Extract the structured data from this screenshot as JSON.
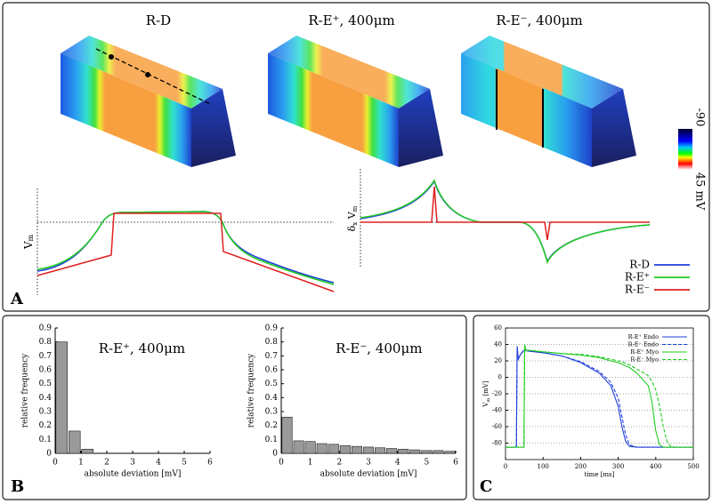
{
  "panel_labels": [
    "A",
    "B",
    "C"
  ],
  "panel_a": {
    "titles": [
      "R-D",
      "R-E⁺, 400μm",
      "R-E⁻, 400μm"
    ],
    "colorbar_labels": [
      "-90",
      "45 mV"
    ],
    "vm_label": [
      "V",
      "m"
    ],
    "dvm_label": [
      "δ",
      "x",
      " V",
      "m"
    ],
    "legend": [
      {
        "name": "R-D",
        "color": "#1f3fd8"
      },
      {
        "name": "R-E⁺",
        "color": "#22cc22"
      },
      {
        "name": "R-E⁻",
        "color": "#e02020"
      }
    ]
  },
  "chart_data": [
    {
      "type": "histogram",
      "title": "R-E⁺, 400μm",
      "x_label": "absolute deviation [mV]",
      "y_label": "relative frequency",
      "bins": [
        0,
        0.5,
        1,
        1.5,
        2,
        2.5,
        3,
        3.5,
        4,
        4.5,
        5,
        5.5,
        6
      ],
      "values": [
        0.8,
        0.16,
        0.03,
        0,
        0,
        0,
        0,
        0,
        0,
        0,
        0,
        0
      ],
      "color": "#999999",
      "xlim": [
        0,
        6
      ],
      "xticks": [
        0,
        1,
        2,
        3,
        4,
        5,
        6
      ],
      "ylim": [
        0,
        0.9
      ],
      "yticks": [
        0,
        0.1,
        0.2,
        0.3,
        0.4,
        0.5,
        0.6,
        0.7,
        0.8,
        0.9
      ]
    },
    {
      "type": "histogram",
      "title": "R-E⁻, 400μm",
      "x_label": "absolute deviation [mV]",
      "y_label": "relative frequency",
      "bins": [
        0,
        0.4,
        0.8,
        1.2,
        1.6,
        2,
        2.4,
        2.8,
        3.2,
        3.6,
        4,
        4.4,
        4.8,
        5.2,
        5.6,
        6
      ],
      "values": [
        0.26,
        0.09,
        0.085,
        0.07,
        0.065,
        0.055,
        0.05,
        0.045,
        0.04,
        0.035,
        0.03,
        0.025,
        0.02,
        0.02,
        0.015
      ],
      "color": "#999999",
      "xlim": [
        0,
        6
      ],
      "xticks": [
        0,
        1,
        2,
        3,
        4,
        5,
        6
      ],
      "ylim": [
        0,
        0.9
      ],
      "yticks": [
        0,
        0.1,
        0.2,
        0.3,
        0.4,
        0.5,
        0.6,
        0.7,
        0.8,
        0.9
      ]
    },
    {
      "type": "line",
      "x_label": "time [ms]",
      "y_label": [
        "V",
        "m",
        " [mV]"
      ],
      "x": [
        0,
        29,
        31,
        34,
        40,
        49,
        51,
        55,
        60,
        100,
        150,
        200,
        250,
        280,
        300,
        310,
        320,
        330,
        350,
        380,
        390,
        400,
        410,
        420,
        430,
        440,
        450,
        500
      ],
      "series": [
        {
          "name": "R-E⁺ Endo",
          "color": "#1f3fd8",
          "dashed": false,
          "values": [
            -85,
            -85,
            38,
            22,
            28,
            33,
            33,
            33,
            32,
            30,
            26,
            18,
            5,
            -10,
            -35,
            -60,
            -78,
            -84,
            -85,
            -85,
            -85,
            -85,
            -85,
            -85,
            -85,
            -85,
            -85,
            -85
          ]
        },
        {
          "name": "R-E⁻ Endo",
          "color": "#1f3fd8",
          "dashed": true,
          "values": [
            -85,
            -85,
            36,
            22,
            28,
            33,
            33,
            33,
            32,
            30,
            26,
            19,
            7,
            -6,
            -25,
            -48,
            -70,
            -82,
            -85,
            -85,
            -85,
            -85,
            -85,
            -85,
            -85,
            -85,
            -85,
            -85
          ]
        },
        {
          "name": "R-E⁺ Myo",
          "color": "#22cc22",
          "dashed": false,
          "values": [
            -85,
            -85,
            -85,
            -85,
            -85,
            -85,
            40,
            32,
            33,
            31,
            29,
            27,
            24,
            20,
            18,
            16,
            14,
            12,
            5,
            -10,
            -30,
            -65,
            -82,
            -85,
            -85,
            -85,
            -85,
            -85
          ]
        },
        {
          "name": "R-E⁻ Myo",
          "color": "#22cc22",
          "dashed": true,
          "values": [
            -85,
            -85,
            -85,
            -85,
            -85,
            -85,
            36,
            32,
            33,
            31,
            29,
            28,
            25,
            22,
            20,
            19,
            17,
            15,
            10,
            2,
            -5,
            -15,
            -35,
            -60,
            -78,
            -84,
            -85,
            -85
          ]
        }
      ],
      "xlim": [
        0,
        500
      ],
      "xticks": [
        0,
        100,
        200,
        300,
        400,
        500
      ],
      "ylim": [
        -100,
        60
      ],
      "yticks": [
        -80,
        -60,
        -40,
        -20,
        0,
        20,
        40,
        60
      ],
      "grid": true
    }
  ]
}
